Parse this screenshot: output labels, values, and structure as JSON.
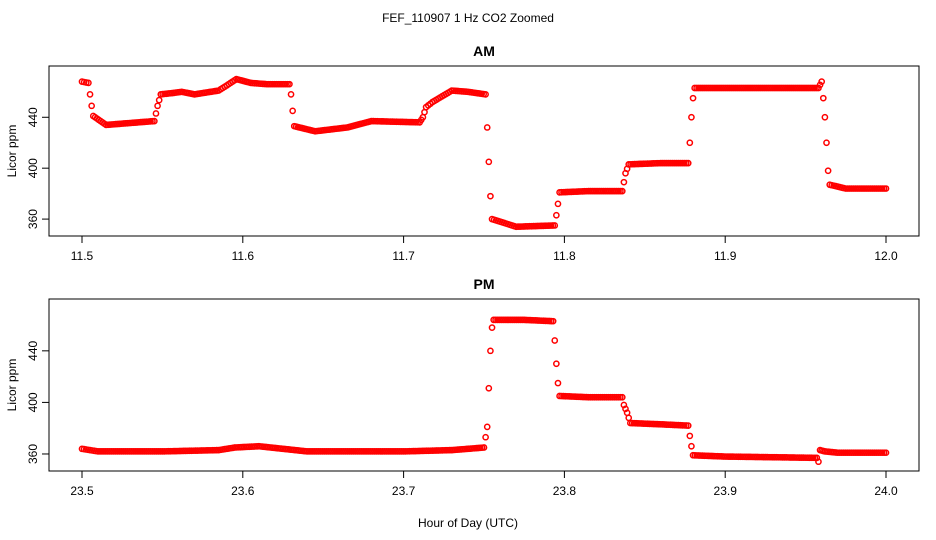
{
  "title": "FEF_110907  1 Hz CO2 Zoomed",
  "xlabel": "Hour of Day (UTC)",
  "colors": {
    "points": "#ff0000",
    "axes": "#000000"
  },
  "chart_data": [
    {
      "type": "scatter",
      "title": "AM",
      "ylabel": "Licor ppm",
      "xlim": [
        11.5,
        12.0
      ],
      "ylim": [
        353,
        474
      ],
      "xticks": [
        "11.5",
        "11.6",
        "11.7",
        "11.8",
        "11.9",
        "12.0"
      ],
      "xtick_values": [
        11.5,
        11.6,
        11.7,
        11.8,
        11.9,
        12.0
      ],
      "yticks": [
        "360",
        "400",
        "440"
      ],
      "ytick_values": [
        360,
        400,
        440
      ],
      "marker": "open-circle",
      "series_points": [
        [
          11.5,
          468
        ],
        [
          11.504,
          467
        ],
        [
          11.505,
          458
        ],
        [
          11.506,
          449
        ],
        [
          11.507,
          441
        ],
        [
          11.515,
          434
        ],
        [
          11.545,
          437
        ],
        [
          11.547,
          449
        ],
        [
          11.549,
          458
        ],
        [
          11.556,
          459
        ],
        [
          11.562,
          460
        ],
        [
          11.57,
          458
        ],
        [
          11.585,
          461
        ],
        [
          11.59,
          465
        ],
        [
          11.596,
          470
        ],
        [
          11.605,
          467
        ],
        [
          11.615,
          466
        ],
        [
          11.629,
          466
        ],
        [
          11.63,
          458
        ],
        [
          11.631,
          445
        ],
        [
          11.632,
          433
        ],
        [
          11.645,
          429
        ],
        [
          11.665,
          432
        ],
        [
          11.68,
          437
        ],
        [
          11.71,
          436
        ],
        [
          11.712,
          440
        ],
        [
          11.714,
          448
        ],
        [
          11.718,
          452
        ],
        [
          11.73,
          461
        ],
        [
          11.74,
          460
        ],
        [
          11.751,
          458
        ],
        [
          11.752,
          432
        ],
        [
          11.753,
          405
        ],
        [
          11.754,
          378
        ],
        [
          11.755,
          360
        ],
        [
          11.77,
          354
        ],
        [
          11.794,
          355
        ],
        [
          11.795,
          363
        ],
        [
          11.796,
          372
        ],
        [
          11.797,
          381
        ],
        [
          11.815,
          382
        ],
        [
          11.836,
          382
        ],
        [
          11.837,
          389
        ],
        [
          11.838,
          396
        ],
        [
          11.84,
          403
        ],
        [
          11.86,
          404
        ],
        [
          11.877,
          404
        ],
        [
          11.878,
          420
        ],
        [
          11.879,
          440
        ],
        [
          11.88,
          455
        ],
        [
          11.881,
          463
        ],
        [
          11.91,
          463
        ],
        [
          11.958,
          463
        ],
        [
          11.96,
          468
        ],
        [
          11.961,
          455
        ],
        [
          11.962,
          440
        ],
        [
          11.963,
          420
        ],
        [
          11.964,
          398
        ],
        [
          11.965,
          387
        ],
        [
          11.975,
          384
        ],
        [
          12.0,
          384
        ]
      ]
    },
    {
      "type": "scatter",
      "title": "PM",
      "ylabel": "Licor ppm",
      "xlim": [
        23.5,
        24.0
      ],
      "ylim": [
        353,
        474
      ],
      "xticks": [
        "23.5",
        "23.6",
        "23.7",
        "23.8",
        "23.9",
        "24.0"
      ],
      "xtick_values": [
        23.5,
        23.6,
        23.7,
        23.8,
        23.9,
        24.0
      ],
      "yticks": [
        "360",
        "400",
        "440"
      ],
      "ytick_values": [
        360,
        400,
        440
      ],
      "marker": "open-circle",
      "series_points": [
        [
          23.5,
          364
        ],
        [
          23.51,
          362
        ],
        [
          23.55,
          362
        ],
        [
          23.585,
          363
        ],
        [
          23.595,
          365
        ],
        [
          23.61,
          366
        ],
        [
          23.625,
          364
        ],
        [
          23.64,
          362
        ],
        [
          23.7,
          362
        ],
        [
          23.73,
          363
        ],
        [
          23.75,
          365
        ],
        [
          23.752,
          381
        ],
        [
          23.753,
          411
        ],
        [
          23.754,
          440
        ],
        [
          23.755,
          458
        ],
        [
          23.756,
          464
        ],
        [
          23.775,
          464
        ],
        [
          23.793,
          463
        ],
        [
          23.794,
          448
        ],
        [
          23.795,
          430
        ],
        [
          23.796,
          415
        ],
        [
          23.797,
          405
        ],
        [
          23.815,
          404
        ],
        [
          23.836,
          404
        ],
        [
          23.837,
          398
        ],
        [
          23.839,
          392
        ],
        [
          23.841,
          384
        ],
        [
          23.86,
          383
        ],
        [
          23.877,
          382
        ],
        [
          23.878,
          374
        ],
        [
          23.879,
          366
        ],
        [
          23.88,
          359
        ],
        [
          23.9,
          358
        ],
        [
          23.957,
          357
        ],
        [
          23.958,
          354
        ],
        [
          23.959,
          363
        ],
        [
          23.962,
          362
        ],
        [
          23.97,
          361
        ],
        [
          24.0,
          361
        ]
      ]
    }
  ]
}
